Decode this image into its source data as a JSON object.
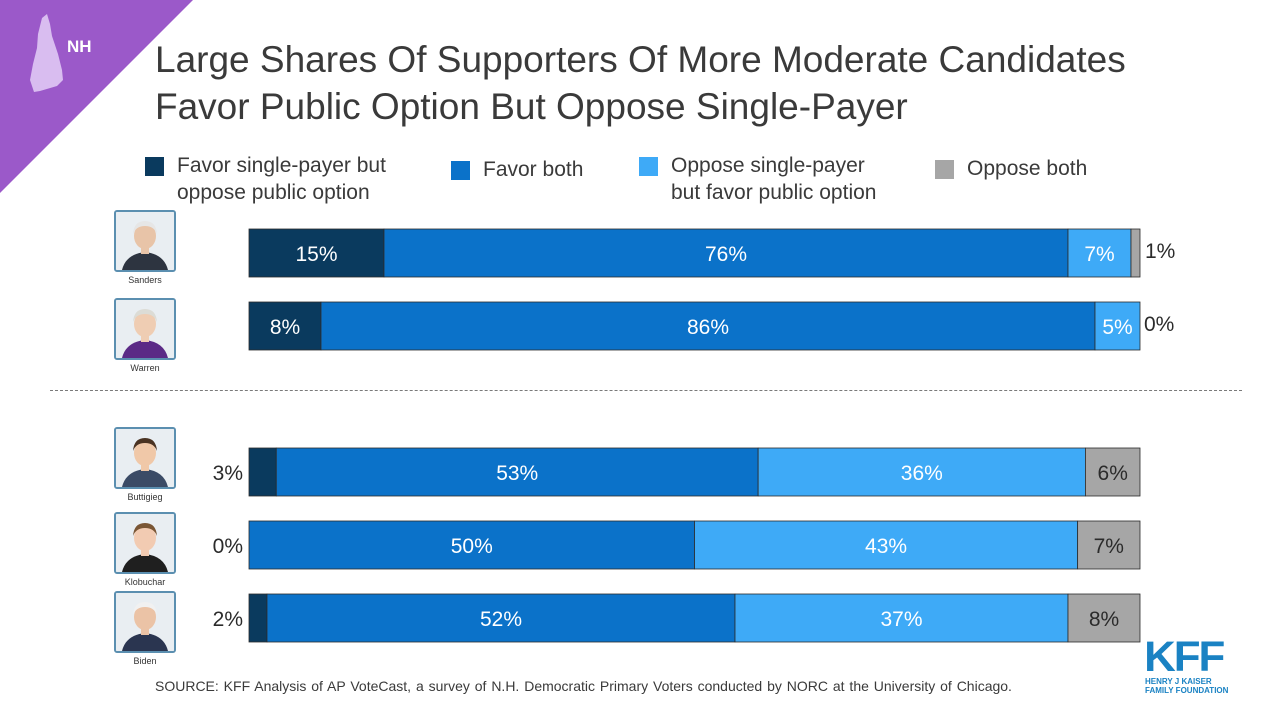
{
  "badge": "NH",
  "title_lines": [
    "Large Shares Of Supporters Of More Moderate Candidates",
    "Favor Public Option But Oppose Single-Payer"
  ],
  "legend": [
    {
      "label": "Favor single-payer but\noppose public option",
      "color": "#0a3a5e"
    },
    {
      "label": "Favor both",
      "color": "#0b72c9"
    },
    {
      "label": "Oppose single-payer\nbut favor public option",
      "color": "#3eaaf7"
    },
    {
      "label": "Oppose both",
      "color": "#a6a6a6"
    }
  ],
  "chart_data": {
    "type": "bar",
    "orientation": "horizontal",
    "stacked": true,
    "categories": [
      "Sanders",
      "Warren",
      "Buttigieg",
      "Klobuchar",
      "Biden"
    ],
    "series": [
      {
        "name": "Favor single-payer but oppose public option",
        "values": [
          15,
          8,
          3,
          0,
          2
        ],
        "labels": [
          "15%",
          "8%",
          "3%",
          "0%",
          "2%"
        ]
      },
      {
        "name": "Favor both",
        "values": [
          76,
          86,
          53,
          50,
          52
        ],
        "labels": [
          "76%",
          "86%",
          "53%",
          "50%",
          "52%"
        ]
      },
      {
        "name": "Oppose single-payer but favor public option",
        "values": [
          7,
          5,
          36,
          43,
          37
        ],
        "labels": [
          "7%",
          "5%",
          "36%",
          "43%",
          "37%"
        ]
      },
      {
        "name": "Oppose both",
        "values": [
          1,
          0,
          6,
          7,
          8
        ],
        "labels": [
          "1%",
          "0%",
          "6%",
          "7%",
          "8%"
        ]
      }
    ],
    "xlim": [
      0,
      100
    ],
    "groups": [
      [
        "Sanders",
        "Warren"
      ],
      [
        "Buttigieg",
        "Klobuchar",
        "Biden"
      ]
    ]
  },
  "source": "SOURCE: KFF Analysis of AP VoteCast, a survey of N.H. Democratic Primary Voters conducted by NORC at the University of Chicago.",
  "logo": {
    "word": "KFF",
    "sub_lines": [
      "HENRY J KAISER",
      "FAMILY FOUNDATION"
    ]
  }
}
